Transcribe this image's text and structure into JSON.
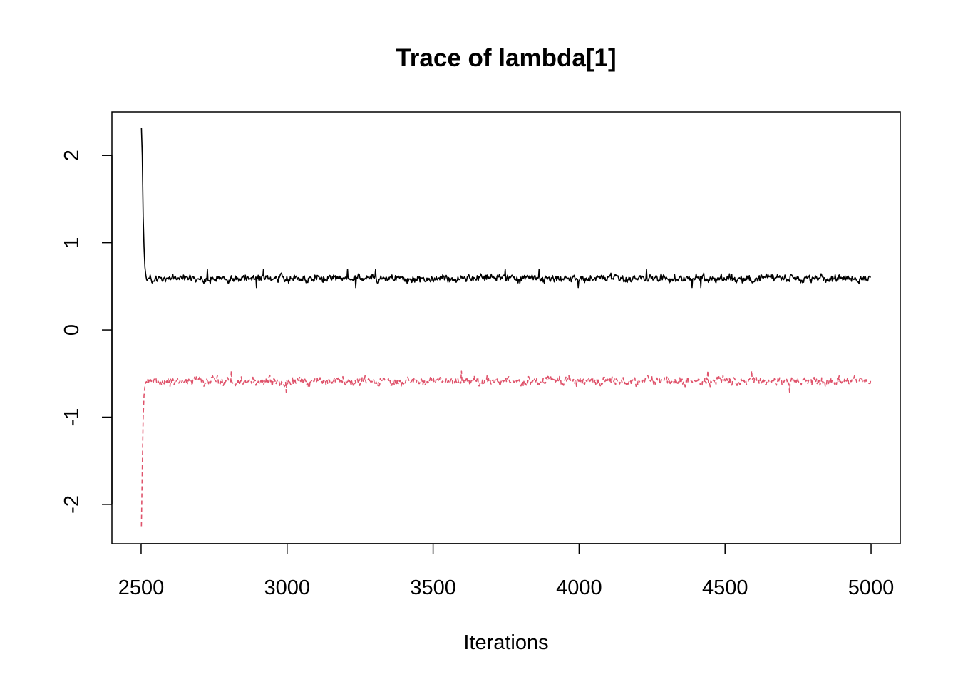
{
  "chart_data": {
    "type": "line",
    "title": "Trace of lambda[1]",
    "xlabel": "Iterations",
    "ylabel": "",
    "xlim": [
      2400,
      5100
    ],
    "ylim": [
      -2.45,
      2.5
    ],
    "x_ticks": [
      2500,
      3000,
      3500,
      4000,
      4500,
      5000
    ],
    "x_tick_labels": [
      "2500",
      "3000",
      "3500",
      "4000",
      "4500",
      "5000"
    ],
    "y_ticks": [
      -2,
      -1,
      0,
      1,
      2
    ],
    "y_tick_labels": [
      "-2",
      "-1",
      "0",
      "1",
      "2"
    ],
    "grid": false,
    "legend": "none",
    "series": [
      {
        "color": "#000000",
        "dash": "solid",
        "x_range": [
          2501,
          5000
        ],
        "start_value": 2.32,
        "burn_in_values": [
          2.32,
          2.0,
          1.3,
          0.95,
          0.72,
          0.63
        ],
        "stationary_mean": 0.59,
        "stationary_min": 0.48,
        "stationary_max": 0.7
      },
      {
        "color": "#DF536B",
        "dash": "dashed",
        "x_range": [
          2501,
          5000
        ],
        "start_value": -2.25,
        "burn_in_values": [
          -2.25,
          -1.6,
          -1.0,
          -0.75,
          -0.65,
          -0.6
        ],
        "stationary_mean": -0.59,
        "stationary_min": -0.72,
        "stationary_max": -0.46
      }
    ]
  }
}
